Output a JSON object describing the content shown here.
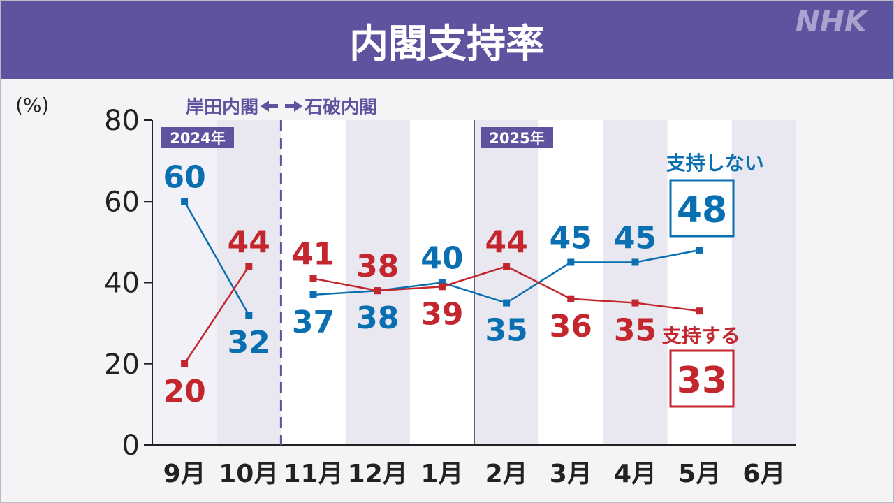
{
  "header": {
    "title": "内閣支持率",
    "logo": "NHK"
  },
  "colors": {
    "header_bg": "#5e539f",
    "support": "#c4262e",
    "nonsupport": "#0a6fb0",
    "label_bg": "#5e539f",
    "band": "#e9e8f1",
    "axis": "#222222",
    "divider": "#5e539f"
  },
  "annotations": {
    "cabinet_before": "岸田内閣",
    "cabinet_after": "石破内閣",
    "year_2024": "2024年",
    "year_2025": "2025年"
  },
  "chart_data": {
    "type": "line",
    "ylabel": "(%)",
    "ylim": [
      0,
      80
    ],
    "yticks": [
      0,
      20,
      40,
      60,
      80
    ],
    "categories": [
      "9月",
      "10月",
      "11月",
      "12月",
      "1月",
      "2月",
      "3月",
      "4月",
      "5月",
      "6月"
    ],
    "series": [
      {
        "name": "支持しない",
        "values": [
          60,
          32,
          37,
          38,
          40,
          35,
          45,
          45,
          48,
          null
        ],
        "latest": "48"
      },
      {
        "name": "支持する",
        "values": [
          20,
          44,
          41,
          38,
          39,
          44,
          36,
          35,
          33,
          null
        ],
        "latest": "33"
      }
    ]
  }
}
